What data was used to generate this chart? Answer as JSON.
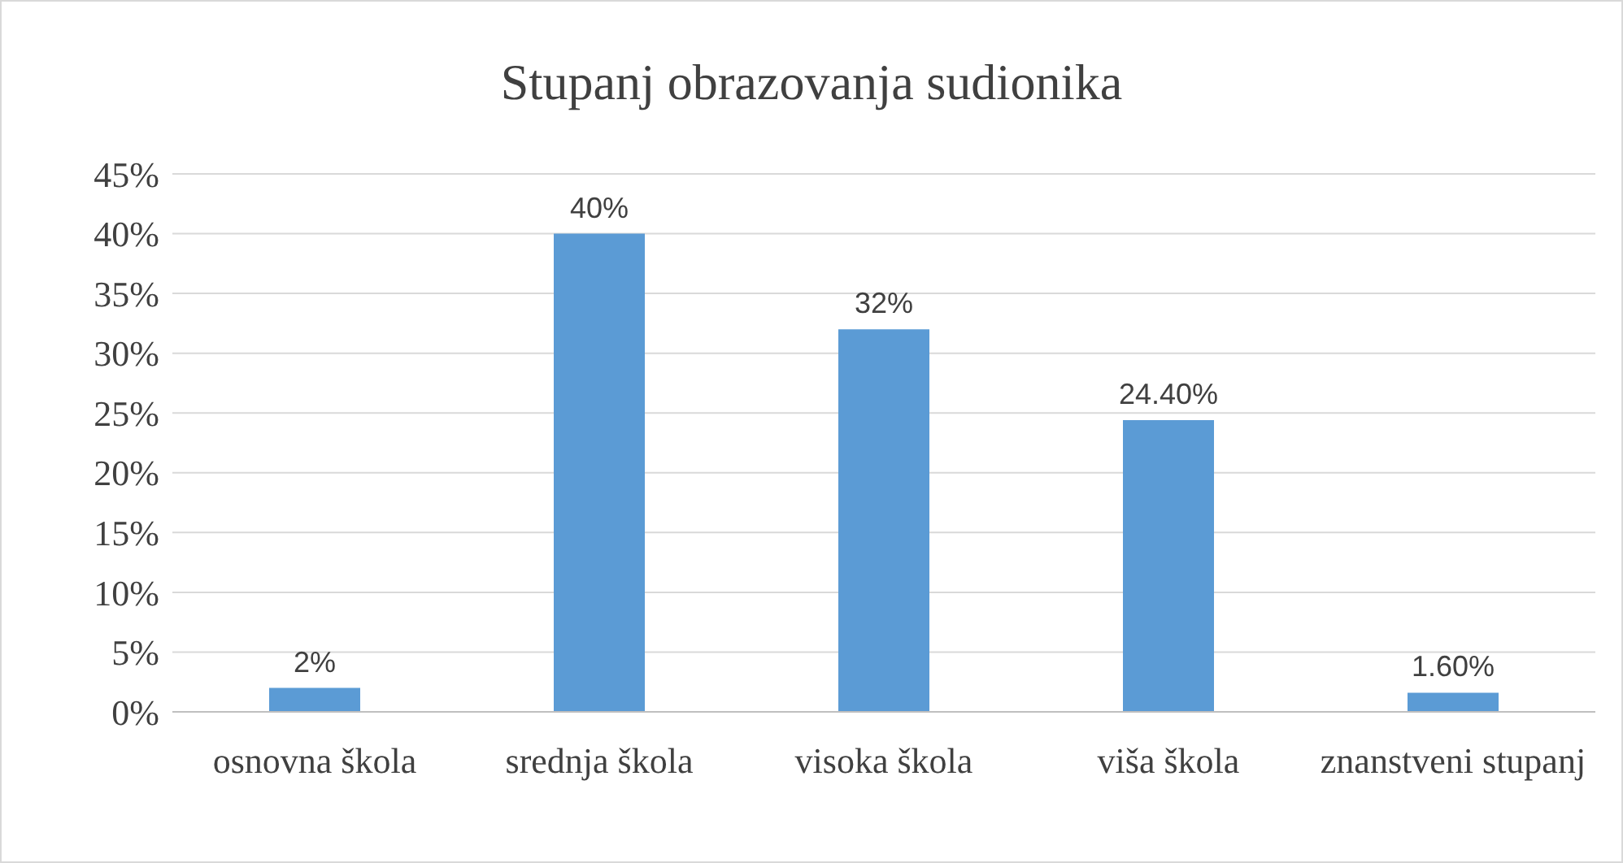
{
  "chart_data": {
    "type": "bar",
    "title": "Stupanj obrazovanja sudionika",
    "categories": [
      "osnovna škola",
      "srednja škola",
      "visoka škola",
      "viša škola",
      "znanstveni stupanj"
    ],
    "values": [
      2,
      40,
      32,
      24.4,
      1.6
    ],
    "value_labels": [
      "2%",
      "40%",
      "32%",
      "24.40%",
      "1.60%"
    ],
    "color": "#5b9bd5",
    "ylim": [
      0,
      45
    ],
    "yticks": [
      {
        "value": 0,
        "label": "0%"
      },
      {
        "value": 5,
        "label": "5%"
      },
      {
        "value": 10,
        "label": "10%"
      },
      {
        "value": 15,
        "label": "15%"
      },
      {
        "value": 20,
        "label": "20%"
      },
      {
        "value": 25,
        "label": "25%"
      },
      {
        "value": 30,
        "label": "30%"
      },
      {
        "value": 35,
        "label": "35%"
      },
      {
        "value": 40,
        "label": "40%"
      },
      {
        "value": 45,
        "label": "45%"
      }
    ],
    "grid": "y"
  }
}
